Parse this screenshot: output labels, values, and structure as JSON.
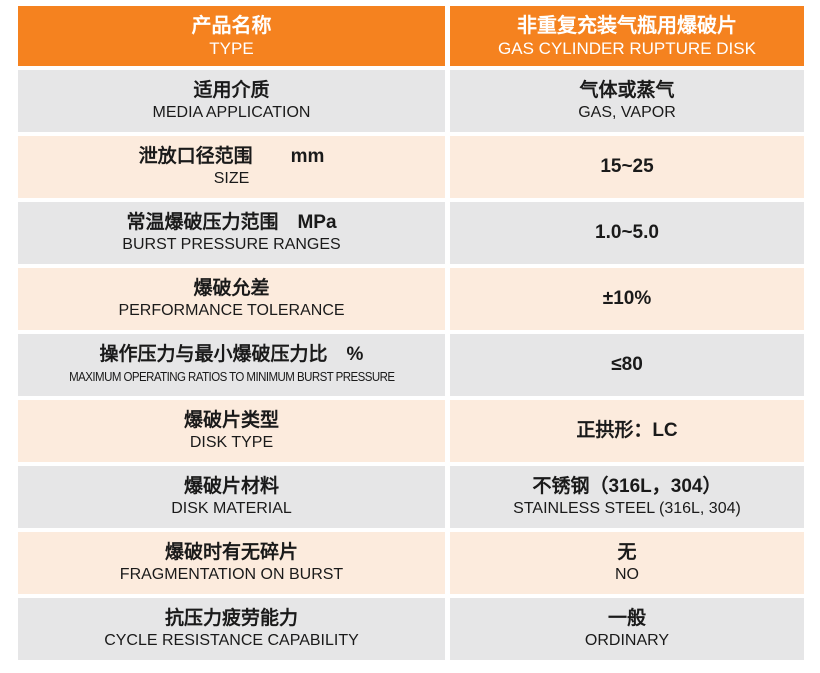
{
  "header": {
    "left_cn": "产品名称",
    "left_en": "TYPE",
    "right_cn": "非重复充装气瓶用爆破片",
    "right_en": "GAS CYLINDER RUPTURE DISK"
  },
  "rows": [
    {
      "label_cn": "适用介质",
      "label_en": "MEDIA APPLICATION",
      "value_cn": "气体或蒸气",
      "value_en": "GAS, VAPOR"
    },
    {
      "label_cn": "泄放口径范围　　mm",
      "label_en": "SIZE",
      "value_cn": "15~25",
      "value_en": ""
    },
    {
      "label_cn": "常温爆破压力范围　MPa",
      "label_en": "BURST PRESSURE RANGES",
      "value_cn": "1.0~5.0",
      "value_en": ""
    },
    {
      "label_cn": "爆破允差",
      "label_en": "PERFORMANCE TOLERANCE",
      "value_cn": "±10%",
      "value_en": ""
    },
    {
      "label_cn": "操作压力与最小爆破压力比　%",
      "label_en": "MAXIMUM OPERATING RATIOS TO MINIMUM BURST PRESSURE",
      "value_cn": "≤80",
      "value_en": ""
    },
    {
      "label_cn": "爆破片类型",
      "label_en": "DISK TYPE",
      "value_cn": "正拱形：LC",
      "value_en": ""
    },
    {
      "label_cn": "爆破片材料",
      "label_en": "DISK MATERIAL",
      "value_cn": "不锈钢（316L，304）",
      "value_en": "STAINLESS STEEL (316L, 304)"
    },
    {
      "label_cn": "爆破时有无碎片",
      "label_en": "FRAGMENTATION ON BURST",
      "value_cn": "无",
      "value_en": "NO"
    },
    {
      "label_cn": "抗压力疲劳能力",
      "label_en": "CYCLE RESISTANCE CAPABILITY",
      "value_cn": "一般",
      "value_en": "ORDINARY"
    }
  ],
  "colors": {
    "header": "#f5821f",
    "row_gray": "#e6e6e7",
    "row_peach": "#fcebdd"
  }
}
